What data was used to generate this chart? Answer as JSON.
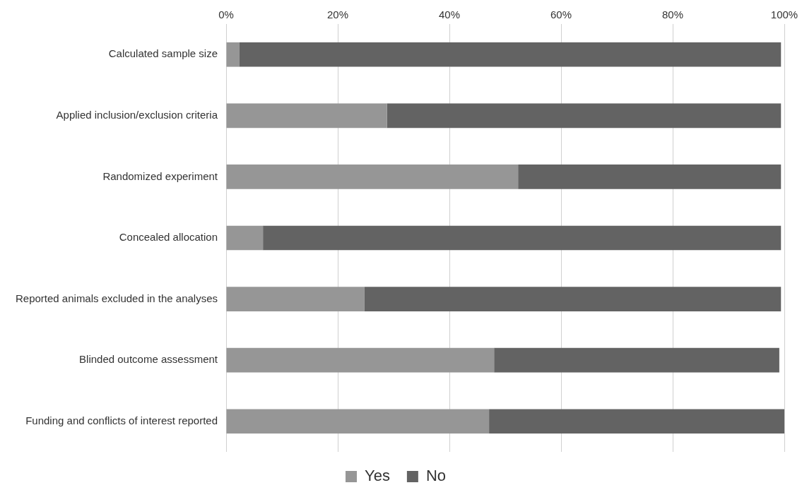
{
  "chart_data": {
    "type": "bar",
    "orientation": "horizontal",
    "stacked": true,
    "categories": [
      "Calculated sample size",
      "Applied inclusion/exclusion criteria",
      "Randomized experiment",
      "Concealed allocation",
      "Reported animals excluded in the analyses",
      "Blinded outcome assessment",
      "Funding and conflicts of interest reported"
    ],
    "series": [
      {
        "name": "Yes",
        "color": "#969696",
        "values": [
          2.4,
          28.8,
          52.3,
          6.6,
          24.8,
          48,
          47.1
        ]
      },
      {
        "name": "No",
        "color": "#636363",
        "values": [
          97,
          70.6,
          47.1,
          92.8,
          74.6,
          51.1,
          52.9
        ]
      }
    ],
    "xlim": [
      0,
      100
    ],
    "xticks": [
      {
        "value": 0,
        "label": "0%"
      },
      {
        "value": 20,
        "label": "20%"
      },
      {
        "value": 40,
        "label": "40%"
      },
      {
        "value": 60,
        "label": "60%"
      },
      {
        "value": 80,
        "label": "80%"
      },
      {
        "value": 100,
        "label": "100%"
      }
    ],
    "grid": "x",
    "legend": "bottom"
  }
}
